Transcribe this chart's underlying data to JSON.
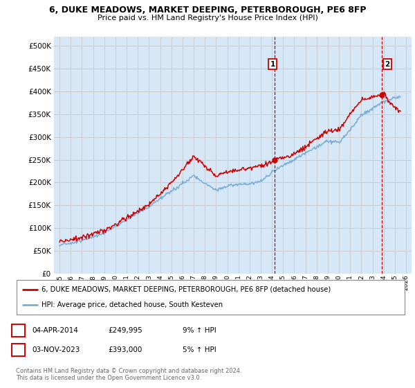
{
  "title": "6, DUKE MEADOWS, MARKET DEEPING, PETERBOROUGH, PE6 8FP",
  "subtitle": "Price paid vs. HM Land Registry's House Price Index (HPI)",
  "legend_line1": "6, DUKE MEADOWS, MARKET DEEPING, PETERBOROUGH, PE6 8FP (detached house)",
  "legend_line2": "HPI: Average price, detached house, South Kesteven",
  "footnote": "Contains HM Land Registry data © Crown copyright and database right 2024.\nThis data is licensed under the Open Government Licence v3.0.",
  "sale1_label": "1",
  "sale1_date": "04-APR-2014",
  "sale1_price": "£249,995",
  "sale1_hpi": "9% ↑ HPI",
  "sale2_label": "2",
  "sale2_date": "03-NOV-2023",
  "sale2_price": "£393,000",
  "sale2_hpi": "5% ↑ HPI",
  "red_color": "#cc0000",
  "blue_color": "#7aadd4",
  "grid_color": "#cccccc",
  "bg_color": "#d6e8f7",
  "sale1_x": 2014.25,
  "sale1_y": 249995,
  "sale2_x": 2023.83,
  "sale2_y": 393000,
  "ylim": [
    0,
    520000
  ],
  "yticks": [
    0,
    50000,
    100000,
    150000,
    200000,
    250000,
    300000,
    350000,
    400000,
    450000,
    500000
  ],
  "xlim": [
    1994.5,
    2026.5
  ],
  "xticks": [
    1995,
    1996,
    1997,
    1998,
    1999,
    2000,
    2001,
    2002,
    2003,
    2004,
    2005,
    2006,
    2007,
    2008,
    2009,
    2010,
    2011,
    2012,
    2013,
    2014,
    2015,
    2016,
    2017,
    2018,
    2019,
    2020,
    2021,
    2022,
    2023,
    2024,
    2025,
    2026
  ]
}
